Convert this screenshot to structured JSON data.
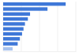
{
  "chart_data": {
    "type": "bar",
    "orientation": "horizontal",
    "categories": [
      null,
      null,
      null,
      null,
      null,
      null,
      null,
      null,
      null,
      null
    ],
    "values": [
      86,
      61,
      37,
      34,
      30,
      28,
      26,
      23,
      20,
      13
    ],
    "colors": [
      "#3f78d8",
      "#3f78d8",
      "#3f78d8",
      "#3f78d8",
      "#3f78d8",
      "#3f78d8",
      "#3f78d8",
      "#3f78d8",
      "#3f78d8",
      "#a9c3ee"
    ],
    "ylim": [
      0,
      100
    ],
    "yticks": [
      0,
      25,
      50,
      75,
      100
    ],
    "grid": true,
    "tick_labels": false
  }
}
